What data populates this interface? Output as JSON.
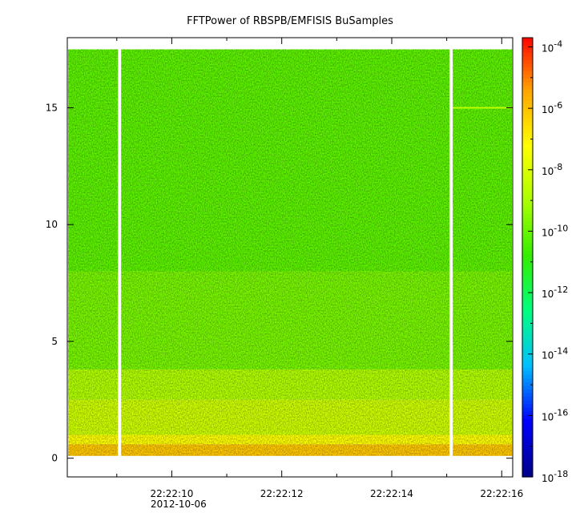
{
  "chart_data": {
    "type": "heatmap",
    "title": "FFTPower of RBSPB/EMFISIS  BuSamples",
    "x": {
      "unit": "time",
      "range": [
        "22:22:08.1",
        "22:22:16.2"
      ],
      "ticks": [
        {
          "value": "22:22:10",
          "label": "22:22:10"
        },
        {
          "value": "22:22:12",
          "label": "22:22:12"
        },
        {
          "value": "22:22:14",
          "label": "22:22:14"
        },
        {
          "value": "22:22:16",
          "label": "22:22:16"
        }
      ],
      "date_label": "2012-10-06"
    },
    "y": {
      "range": [
        -0.8,
        18.0
      ],
      "ticks": [
        0,
        5,
        10,
        15
      ],
      "data_extent": [
        0.1,
        17.5
      ]
    },
    "z": {
      "scale": "log",
      "range_exponent": [
        -18,
        -3.7
      ],
      "colorbar_ticks": [
        {
          "exp": -4,
          "label": "10-4"
        },
        {
          "exp": -6,
          "label": "10-6"
        },
        {
          "exp": -8,
          "label": "10-8"
        },
        {
          "exp": -10,
          "label": "10-10"
        },
        {
          "exp": -12,
          "label": "10-12"
        },
        {
          "exp": -14,
          "label": "10-14"
        },
        {
          "exp": -16,
          "label": "10-16"
        },
        {
          "exp": -18,
          "label": "10-18"
        }
      ],
      "colormap": [
        "#00008b",
        "#0000ff",
        "#00bfff",
        "#00ff7f",
        "#33ee00",
        "#aaff00",
        "#ffff00",
        "#ffa500",
        "#ff0000"
      ]
    },
    "gaps_time": [
      "22:22:09.05",
      "22:22:15.08"
    ],
    "levels_by_frequency": [
      {
        "y_from": 0.1,
        "y_to": 0.6,
        "log_power": -6.2
      },
      {
        "y_from": 0.6,
        "y_to": 1.0,
        "log_power": -7.3
      },
      {
        "y_from": 1.0,
        "y_to": 2.5,
        "log_power": -8.3
      },
      {
        "y_from": 2.5,
        "y_to": 3.8,
        "log_power": -8.9
      },
      {
        "y_from": 3.8,
        "y_to": 8.0,
        "log_power": -9.8
      },
      {
        "y_from": 8.0,
        "y_to": 17.5,
        "log_power": -10.2
      }
    ],
    "narrowband_line": {
      "y": 15.0,
      "log_power": -8.6,
      "from_time": "22:22:15.1"
    }
  }
}
